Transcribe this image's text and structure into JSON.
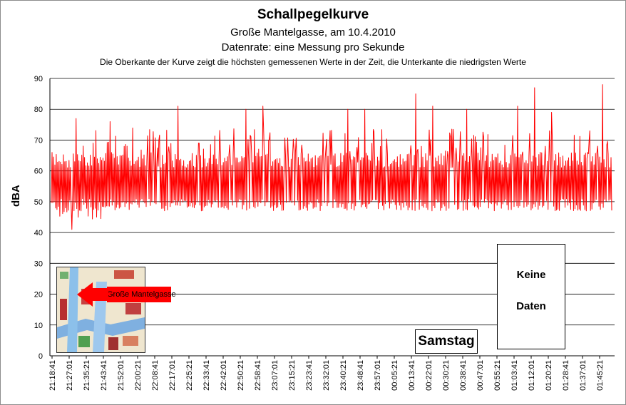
{
  "chart_data": {
    "type": "line",
    "title": "Schallpegelkurve",
    "subtitle_lines": [
      "Große Mantelgasse, am 10.4.2010",
      "Datenrate: eine Messung pro Sekunde",
      "Die Oberkante der Kurve zeigt die höchsten  gemessenen Werte  in der Zeit, die Unterkante  die niedrigsten Werte"
    ],
    "ylabel": "dBA",
    "xlabel": "",
    "ylim": [
      0,
      90
    ],
    "yticks": [
      0,
      10,
      20,
      30,
      40,
      50,
      60,
      70,
      80,
      90
    ],
    "grid": true,
    "x_tick_labels": [
      "21:18:41",
      "21:27:01",
      "21:35:21",
      "21:43:41",
      "21:52:01",
      "22:00:21",
      "22:08:41",
      "22:17:01",
      "22:25:21",
      "22:33:41",
      "22:42:01",
      "22:50:21",
      "22:58:41",
      "23:07:01",
      "23:15:21",
      "23:23:41",
      "23:32:01",
      "23:40:21",
      "23:48:41",
      "23:57:01",
      "00:05:21",
      "00:13:41",
      "00:22:01",
      "00:30:21",
      "00:38:41",
      "00:47:01",
      "00:55:21",
      "01:03:41",
      "01:12:01",
      "01:20:21",
      "01:28:41",
      "01:37:01",
      "01:45:21"
    ],
    "series": [
      {
        "color": "#ff0000",
        "baseline_range": [
          48,
          65
        ],
        "peaks": [
          {
            "t": "21:27:01",
            "y": 77
          },
          {
            "t": "21:35:21",
            "y": 69
          },
          {
            "t": "21:43:41",
            "y": 76
          },
          {
            "t": "22:17:01",
            "y": 81
          },
          {
            "t": "22:50:21",
            "y": 80
          },
          {
            "t": "22:58:41",
            "y": 81
          },
          {
            "t": "23:40:21",
            "y": 80
          },
          {
            "t": "23:48:41",
            "y": 80
          },
          {
            "t": "00:13:41",
            "y": 85
          },
          {
            "t": "00:22:01",
            "y": 81
          },
          {
            "t": "00:38:41",
            "y": 80
          },
          {
            "t": "01:03:41",
            "y": 81
          },
          {
            "t": "01:12:01",
            "y": 87
          },
          {
            "t": "01:20:21",
            "y": 79
          },
          {
            "t": "01:45:21",
            "y": 88
          }
        ],
        "minimum": {
          "t": "21:27:01",
          "y": 41
        }
      }
    ],
    "annotations": [
      {
        "text": "Samstag"
      },
      {
        "text_lines": [
          "Keine",
          "Daten"
        ]
      },
      {
        "text": "Große Mantelgasse"
      }
    ]
  }
}
